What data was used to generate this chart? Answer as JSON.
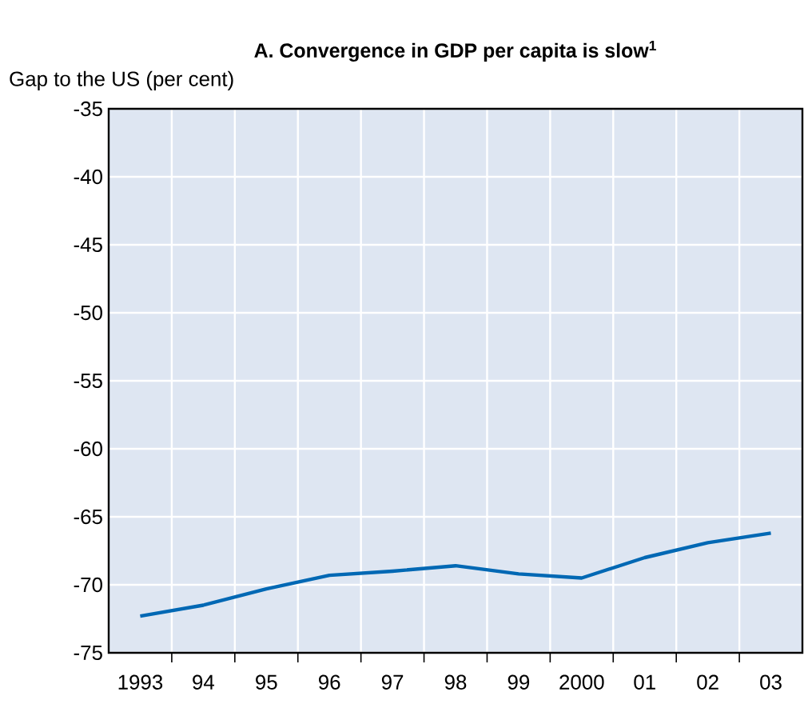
{
  "chart_data": {
    "type": "line",
    "title": "A. Convergence in GDP per capita is slow$^{1}$",
    "ylabel": "Gap to the US (per cent)",
    "categories": [
      "1993",
      "94",
      "95",
      "96",
      "97",
      "98",
      "99",
      "2000",
      "01",
      "02",
      "03"
    ],
    "series": [
      {
        "color": "#0068b4",
        "values": [
          -72.3,
          -71.5,
          -70.3,
          -69.3,
          -69.0,
          -68.6,
          -69.2,
          -69.5,
          -68.0,
          -66.9,
          -66.2
        ]
      }
    ],
    "ylim": [
      -75,
      -35
    ],
    "yticks": [
      -75,
      -70,
      -65,
      -60,
      -55,
      -50,
      -45,
      -40,
      -35
    ],
    "grid": true,
    "marker": "none",
    "line_style": "solid"
  }
}
